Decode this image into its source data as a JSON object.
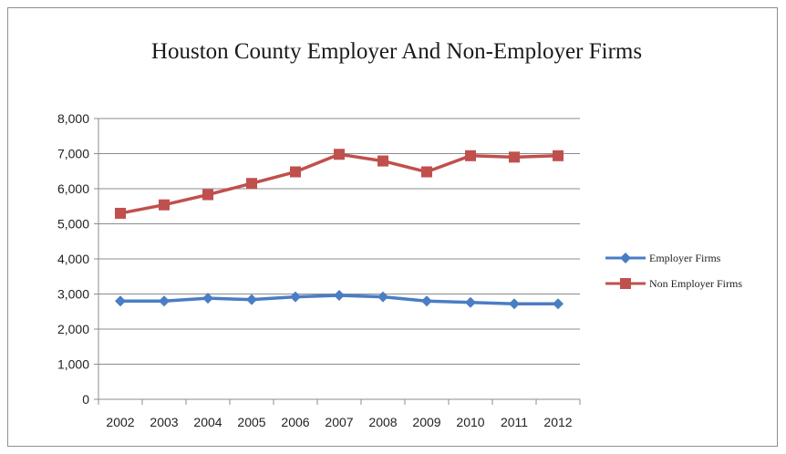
{
  "chart_data": {
    "type": "line",
    "title": "Houston County Employer And Non-Employer Firms",
    "xlabel": "",
    "ylabel": "",
    "categories": [
      "2002",
      "2003",
      "2004",
      "2005",
      "2006",
      "2007",
      "2008",
      "2009",
      "2010",
      "2011",
      "2012"
    ],
    "ylim": [
      0,
      8000
    ],
    "yticks": [
      0,
      1000,
      2000,
      3000,
      4000,
      5000,
      6000,
      7000,
      8000
    ],
    "ytick_labels": [
      "0",
      "1,000",
      "2,000",
      "3,000",
      "4,000",
      "5,000",
      "6,000",
      "7,000",
      "8,000"
    ],
    "grid": true,
    "legend_position": "right",
    "series": [
      {
        "name": "Employer Firms",
        "color": "#4a7dc4",
        "marker": "diamond",
        "values": [
          2800,
          2800,
          2880,
          2840,
          2920,
          2960,
          2920,
          2800,
          2760,
          2720,
          2720
        ]
      },
      {
        "name": "Non Employer Firms",
        "color": "#c0504d",
        "marker": "square",
        "values": [
          5300,
          5540,
          5830,
          6150,
          6480,
          6980,
          6790,
          6480,
          6940,
          6900,
          6940
        ]
      }
    ]
  }
}
